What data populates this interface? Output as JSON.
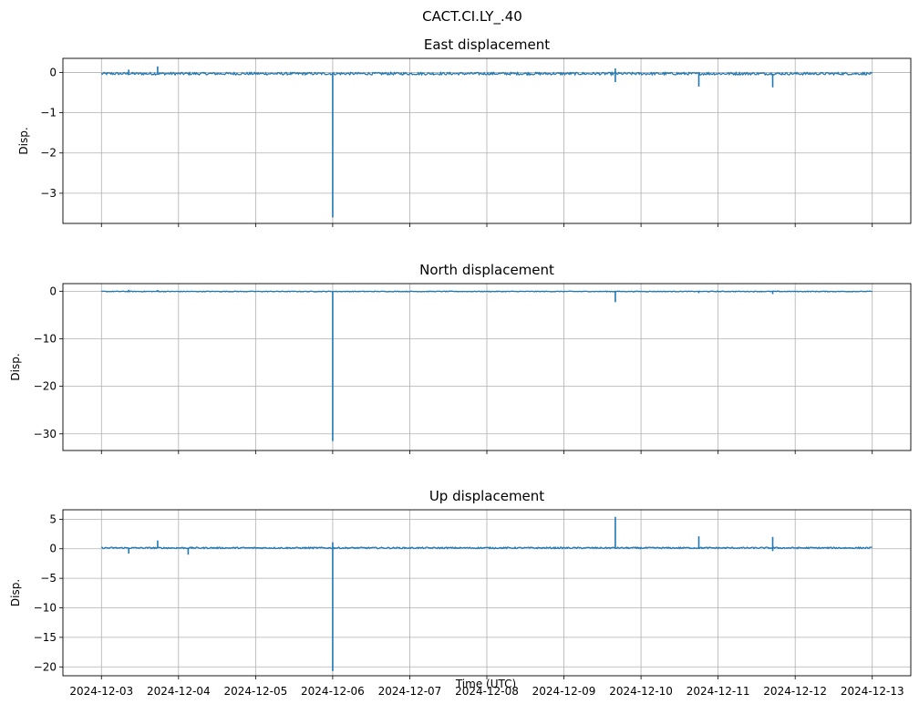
{
  "figure": {
    "suptitle": "CACT.CI.LY_.40",
    "xlabel": "Time (UTC)",
    "line_color": "#1f77b4",
    "grid_color": "#b0b0b0"
  },
  "x_ticks": [
    "2024-12-03",
    "2024-12-04",
    "2024-12-05",
    "2024-12-06",
    "2024-12-07",
    "2024-12-08",
    "2024-12-09",
    "2024-12-10",
    "2024-12-11",
    "2024-12-12",
    "2024-12-13"
  ],
  "chart_data": [
    {
      "type": "line",
      "title": "East displacement",
      "ylabel": "Disp.",
      "xlim": [
        "2024-12-02T12:00:00",
        "2024-12-13T12:00:00"
      ],
      "ylim": [
        -3.75,
        0.35
      ],
      "yticks": [
        0,
        -1,
        -2,
        -3
      ],
      "grid": true,
      "baseline": -0.03,
      "noise": 0.03,
      "spikes": [
        {
          "t": "2024-12-03T08:30:00",
          "y": 0.07
        },
        {
          "t": "2024-12-03T17:30:00",
          "y": 0.15
        },
        {
          "t": "2024-12-06T00:00:00",
          "y": -3.6
        },
        {
          "t": "2024-12-09T16:00:00",
          "y": -0.24
        },
        {
          "t": "2024-12-09T16:00:00",
          "y": 0.1
        },
        {
          "t": "2024-12-10T18:00:00",
          "y": -0.35
        },
        {
          "t": "2024-12-11T17:00:00",
          "y": -0.37
        }
      ]
    },
    {
      "type": "line",
      "title": "North displacement",
      "ylabel": "Disp.",
      "xlim": [
        "2024-12-02T12:00:00",
        "2024-12-13T12:00:00"
      ],
      "ylim": [
        -33.5,
        1.6
      ],
      "yticks": [
        0,
        -10,
        -20,
        -30
      ],
      "grid": true,
      "baseline": -0.05,
      "noise": 0.08,
      "spikes": [
        {
          "t": "2024-12-03T08:30:00",
          "y": 0.3
        },
        {
          "t": "2024-12-03T17:30:00",
          "y": 0.25
        },
        {
          "t": "2024-12-06T00:00:00",
          "y": -31.5
        },
        {
          "t": "2024-12-09T16:00:00",
          "y": -2.3
        },
        {
          "t": "2024-12-10T18:00:00",
          "y": -0.4
        },
        {
          "t": "2024-12-11T17:00:00",
          "y": -0.6
        }
      ]
    },
    {
      "type": "line",
      "title": "Up displacement",
      "ylabel": "Disp.",
      "xlim": [
        "2024-12-02T12:00:00",
        "2024-12-13T12:00:00"
      ],
      "ylim": [
        -21.5,
        6.6
      ],
      "yticks": [
        5,
        0,
        -5,
        -10,
        -15,
        -20
      ],
      "grid": true,
      "baseline": 0.15,
      "noise": 0.12,
      "spikes": [
        {
          "t": "2024-12-03T08:30:00",
          "y": -0.8
        },
        {
          "t": "2024-12-03T17:30:00",
          "y": 1.4
        },
        {
          "t": "2024-12-04T03:00:00",
          "y": -1.0
        },
        {
          "t": "2024-12-06T00:00:00",
          "y": -20.7
        },
        {
          "t": "2024-12-06T00:00:00",
          "y": 1.1
        },
        {
          "t": "2024-12-09T16:00:00",
          "y": 5.4
        },
        {
          "t": "2024-12-10T18:00:00",
          "y": 2.1
        },
        {
          "t": "2024-12-11T17:00:00",
          "y": 2.0
        },
        {
          "t": "2024-12-11T17:00:00",
          "y": -0.4
        }
      ]
    }
  ]
}
